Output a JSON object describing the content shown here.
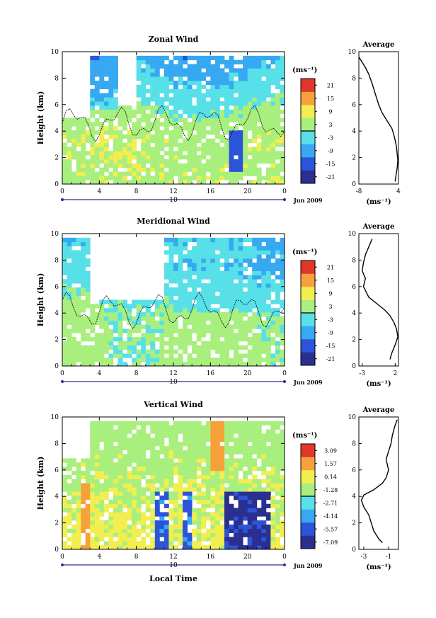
{
  "figure": {
    "xlabel": "Local Time",
    "units_label": "(ms⁻¹)",
    "date_label": "Jun 2009",
    "day_label": "10",
    "x_ticks": [
      "0",
      "4",
      "8",
      "12",
      "16",
      "20",
      "0"
    ],
    "y_ticks": [
      "0",
      "2",
      "4",
      "6",
      "8",
      "10"
    ],
    "ylabel": "Height (km)",
    "profile_title": "Average",
    "profile_units": "(ms⁻¹)"
  },
  "chart_data": [
    {
      "type": "heatmap",
      "title": "Zonal Wind",
      "xlabel": "",
      "ylabel": "Height (km)",
      "xlim": [
        0,
        24
      ],
      "ylim": [
        0,
        10
      ],
      "colorbar": {
        "label": "(ms⁻¹)",
        "ticks": [
          "21",
          "15",
          "9",
          "3",
          "-3",
          "-9",
          "-15",
          "-21"
        ],
        "range": [
          -24,
          24
        ]
      },
      "profile": {
        "title": "Average",
        "xlabel": "(ms⁻¹)",
        "xticks": [
          "-8",
          "4"
        ],
        "xlim": [
          -8,
          4
        ],
        "points": [
          [
            -8,
            9.6
          ],
          [
            -7,
            9.2
          ],
          [
            -6,
            8.8
          ],
          [
            -5,
            8.3
          ],
          [
            -4,
            7.6
          ],
          [
            -3,
            6.8
          ],
          [
            -2,
            6.0
          ],
          [
            -1,
            5.4
          ],
          [
            0,
            5.0
          ],
          [
            1,
            4.6
          ],
          [
            2,
            4.2
          ],
          [
            2.5,
            3.8
          ],
          [
            3,
            3.3
          ],
          [
            3.4,
            2.8
          ],
          [
            3.6,
            2.3
          ],
          [
            3.8,
            1.8
          ],
          [
            3.6,
            1.2
          ],
          [
            3.2,
            0.6
          ],
          [
            3.0,
            0.2
          ]
        ]
      }
    },
    {
      "type": "heatmap",
      "title": "Meridional Wind",
      "xlabel": "",
      "ylabel": "Height (km)",
      "xlim": [
        0,
        24
      ],
      "ylim": [
        0,
        10
      ],
      "colorbar": {
        "label": "(ms⁻¹)",
        "ticks": [
          "21",
          "15",
          "9",
          "3",
          "-3",
          "-9",
          "-15",
          "-21"
        ],
        "range": [
          -24,
          24
        ]
      },
      "profile": {
        "title": "Average",
        "xlabel": "(ms⁻¹)",
        "xticks": [
          "-3",
          "2"
        ],
        "xlim": [
          -3.5,
          2.5
        ],
        "points": [
          [
            -1.5,
            9.6
          ],
          [
            -2.0,
            9.0
          ],
          [
            -2.5,
            8.4
          ],
          [
            -2.8,
            7.8
          ],
          [
            -3.0,
            7.2
          ],
          [
            -2.5,
            6.6
          ],
          [
            -2.8,
            6.0
          ],
          [
            -2.0,
            5.2
          ],
          [
            -0.5,
            4.6
          ],
          [
            0.5,
            4.2
          ],
          [
            1.2,
            3.8
          ],
          [
            1.8,
            3.3
          ],
          [
            2.2,
            2.8
          ],
          [
            2.4,
            2.2
          ],
          [
            2.0,
            1.6
          ],
          [
            1.5,
            1.0
          ],
          [
            1.2,
            0.5
          ]
        ]
      }
    },
    {
      "type": "heatmap",
      "title": "Vertical Wind",
      "xlabel": "Local Time",
      "ylabel": "Height (km)",
      "xlim": [
        0,
        24
      ],
      "ylim": [
        0,
        10
      ],
      "colorbar": {
        "label": "(ms⁻¹)",
        "ticks": [
          "3.09",
          "1.57",
          "0.14",
          "-1.28",
          "-2.71",
          "-4.14",
          "-5.57",
          "-7.09"
        ],
        "range": [
          -7.8,
          3.8
        ]
      },
      "profile": {
        "title": "Average",
        "xlabel": "(ms⁻¹)",
        "xticks": [
          "-3",
          "-1"
        ],
        "xlim": [
          -3.4,
          -0.2
        ],
        "points": [
          [
            -0.3,
            9.8
          ],
          [
            -0.5,
            9.3
          ],
          [
            -0.7,
            8.6
          ],
          [
            -0.8,
            8.0
          ],
          [
            -1.0,
            7.4
          ],
          [
            -1.2,
            6.8
          ],
          [
            -1.0,
            6.0
          ],
          [
            -1.2,
            5.4
          ],
          [
            -1.5,
            5.0
          ],
          [
            -2.2,
            4.5
          ],
          [
            -3.0,
            4.1
          ],
          [
            -3.2,
            3.7
          ],
          [
            -3.0,
            3.2
          ],
          [
            -2.6,
            2.6
          ],
          [
            -2.4,
            2.0
          ],
          [
            -2.2,
            1.4
          ],
          [
            -1.8,
            0.8
          ],
          [
            -1.5,
            0.5
          ]
        ]
      }
    }
  ]
}
